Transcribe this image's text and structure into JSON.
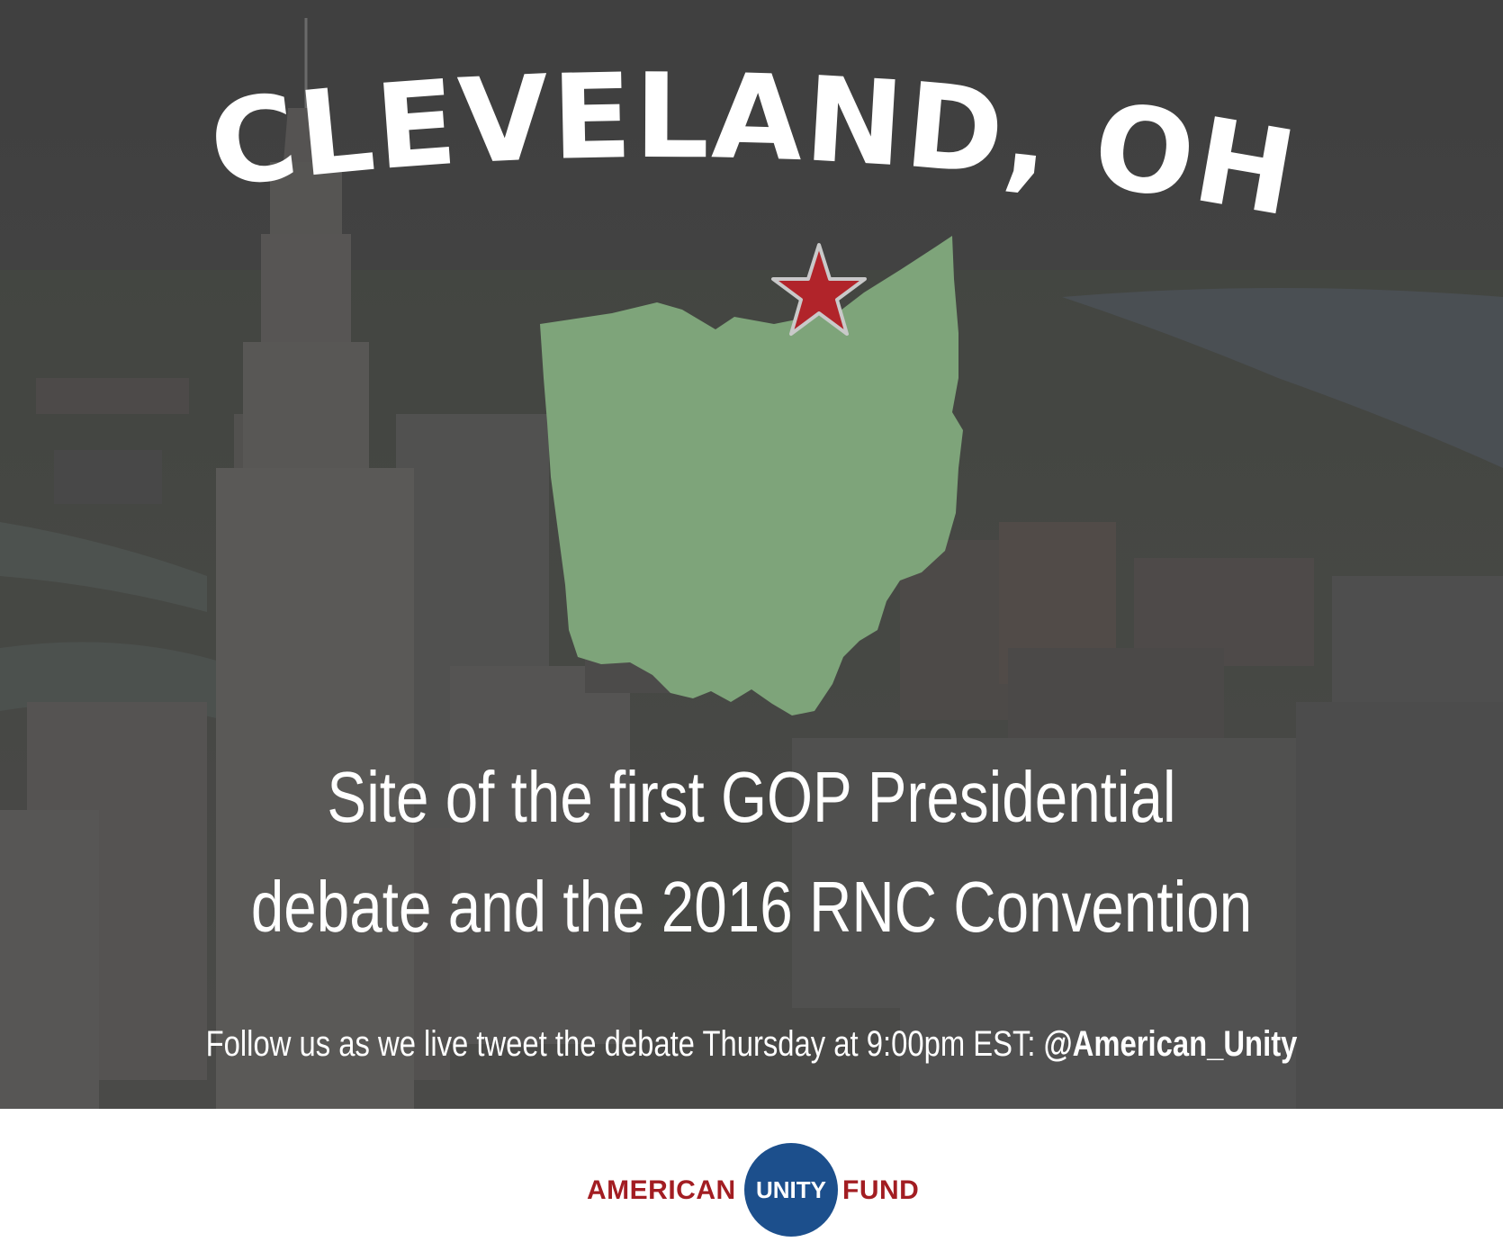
{
  "headline": "CLEVELAND, OH",
  "subtitle": {
    "line1": "Site of the first GOP Presidential",
    "line2": "debate and the 2016 RNC Convention"
  },
  "follow": {
    "text": "Follow us as we live tweet the debate Thursday at 9:00pm EST: ",
    "handle": "@American_Unity"
  },
  "logo": {
    "left": "AMERICAN",
    "center": "UNITY",
    "right": "FUND"
  },
  "icons": {
    "state_map": "ohio-map-icon",
    "marker": "star-icon"
  },
  "colors": {
    "overlay": "#3d3d3d",
    "map_fill": "#7ea47a",
    "star_fill": "#b1242a",
    "star_stroke": "#c9c9c9",
    "headline_text": "#ffffff",
    "logo_red": "#a21d22",
    "logo_blue": "#1c4f8c"
  }
}
